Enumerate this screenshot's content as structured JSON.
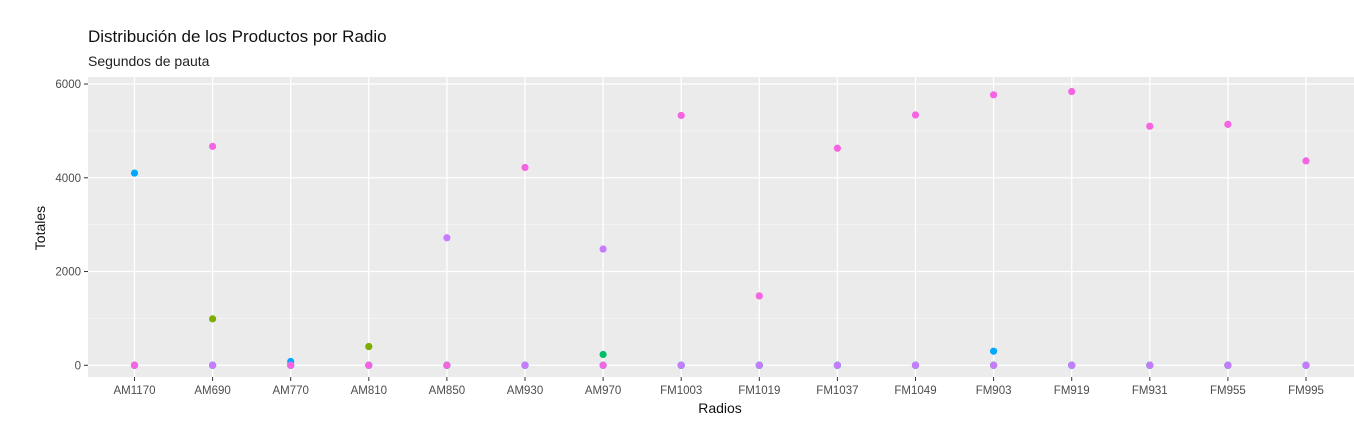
{
  "chart_data": {
    "type": "scatter",
    "title": "Distribución de los Productos por Radio",
    "subtitle": "Segundos de pauta",
    "xlabel": "Radios",
    "ylabel": "Totales",
    "categories": [
      "AM1170",
      "AM690",
      "AM770",
      "AM810",
      "AM850",
      "AM930",
      "AM970",
      "FM1003",
      "FM1019",
      "FM1037",
      "FM1049",
      "FM903",
      "FM919",
      "FM931",
      "FM955",
      "FM995"
    ],
    "ylim": [
      -250,
      6150
    ],
    "yticks": [
      0,
      2000,
      4000,
      6000
    ],
    "grid": true,
    "legend": "none",
    "series": [
      {
        "color": "#7CAE00",
        "values": [
          0,
          990,
          0,
          400,
          0,
          0,
          0,
          0,
          0,
          0,
          0,
          0,
          0,
          0,
          0,
          0
        ]
      },
      {
        "color": "#00BE67",
        "values": [
          0,
          0,
          0,
          0,
          0,
          0,
          230,
          0,
          0,
          0,
          0,
          0,
          0,
          0,
          0,
          0
        ]
      },
      {
        "color": "#00A9FF",
        "values": [
          4100,
          0,
          80,
          0,
          0,
          0,
          0,
          0,
          0,
          0,
          0,
          300,
          0,
          0,
          0,
          0
        ]
      },
      {
        "color": "#C77CFF",
        "values": [
          0,
          0,
          0,
          0,
          2720,
          0,
          2480,
          0,
          0,
          0,
          0,
          0,
          0,
          0,
          0,
          0
        ]
      },
      {
        "color": "#F564E3",
        "values": [
          0,
          4670,
          0,
          0,
          0,
          4220,
          0,
          5330,
          1480,
          4630,
          5340,
          5770,
          5840,
          5100,
          5140,
          4360
        ]
      }
    ]
  }
}
